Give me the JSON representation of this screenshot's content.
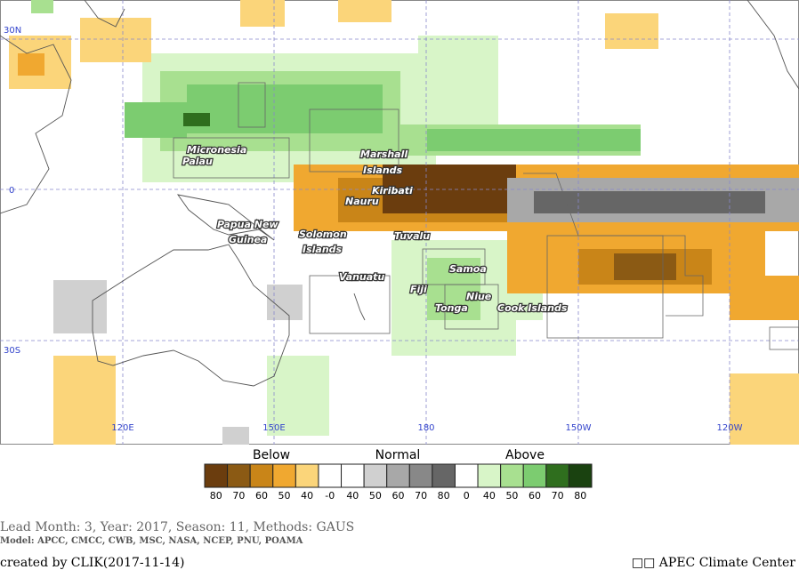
{
  "map": {
    "lat_labels": [
      "30N",
      "0",
      "30S"
    ],
    "lon_labels": [
      "120E",
      "150E",
      "180",
      "150W",
      "120W"
    ],
    "places": [
      "Micronesia",
      "Palau",
      "Marshall",
      "Islands",
      "Kiribati",
      "Nauru",
      "Papua New",
      "Guinea",
      "Solomon",
      "Islands",
      "Tuvalu",
      "Vanuatu",
      "Fiji",
      "Samoa",
      "Niue",
      "Tonga",
      "Cook Islands"
    ]
  },
  "legend": {
    "groups": [
      "Below",
      "Normal",
      "Above"
    ],
    "items": [
      {
        "label": "80",
        "color": "#6b3d0e"
      },
      {
        "label": "70",
        "color": "#8b5a14"
      },
      {
        "label": "60",
        "color": "#c98518"
      },
      {
        "label": "50",
        "color": "#f0a830"
      },
      {
        "label": "40",
        "color": "#fbd57a"
      },
      {
        "label": "-0",
        "color": "#ffffff"
      },
      {
        "label": "40",
        "color": "#ffffff"
      },
      {
        "label": "50",
        "color": "#d0d0d0"
      },
      {
        "label": "60",
        "color": "#a8a8a8"
      },
      {
        "label": "70",
        "color": "#888888"
      },
      {
        "label": "80",
        "color": "#666666"
      },
      {
        "label": "0",
        "color": "#ffffff"
      },
      {
        "label": "40",
        "color": "#d8f5c8"
      },
      {
        "label": "50",
        "color": "#a8e090"
      },
      {
        "label": "60",
        "color": "#7ccc70"
      },
      {
        "label": "70",
        "color": "#2f6e1e"
      },
      {
        "label": "80",
        "color": "#1a4210"
      }
    ]
  },
  "footer": {
    "info": "Lead Month: 3, Year: 2017, Season: 11, Methods: GAUS",
    "models": "Model: APCC, CMCC, CWB, MSC, NASA, NCEP, PNU, POAMA",
    "created": "created by CLIK(2017-11-14)",
    "credit": "□□ APEC Climate Center"
  }
}
